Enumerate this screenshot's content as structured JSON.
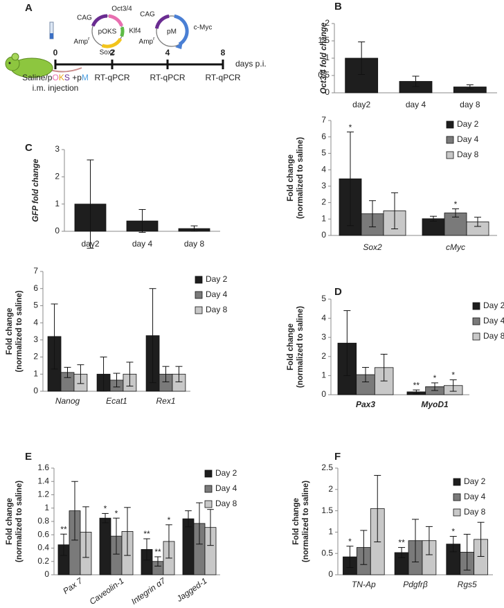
{
  "panel_a": {
    "panel": "A",
    "plasmid_oks": {
      "name": "pOKS",
      "promoter": "CAG",
      "genes": [
        "Oct3/4",
        "Klf4",
        "Sox2"
      ],
      "amp": "Amp",
      "amp_sup": "r"
    },
    "plasmid_m": {
      "name": "pM",
      "promoter": "CAG",
      "gene": "c-Myc",
      "amp": "Amp",
      "amp_sup": "r"
    },
    "timeline": [
      "0",
      "2",
      "4",
      "8"
    ],
    "timeline_unit": "days p.i.",
    "injection": [
      "Saline/p",
      "O",
      "K",
      "S",
      " +p",
      "M"
    ],
    "injection_note": "i.m. injection",
    "assays": [
      "RT-qPCR",
      "RT-qPCR",
      "RT-qPCR"
    ]
  },
  "chart_data": [
    {
      "type": "bar",
      "panel": "B",
      "ylabel": [
        "Oct3/4 fold change"
      ],
      "categories": [
        "day2",
        "day 4",
        "day 8"
      ],
      "values": [
        1.0,
        0.33,
        0.17
      ],
      "errors": [
        0.47,
        0.15,
        0.06
      ],
      "color": "#1e1e1e",
      "ylim": [
        0,
        2
      ],
      "yticks": [
        0,
        0.5,
        1,
        1.5,
        2
      ]
    },
    {
      "type": "bar",
      "panel": "C",
      "ylabel": [
        "GFP fold change"
      ],
      "categories": [
        "day2",
        "day 4",
        "day 8"
      ],
      "values": [
        1.0,
        0.38,
        0.1
      ],
      "errors": [
        1.62,
        0.42,
        0.1
      ],
      "color": "#1e1e1e",
      "ylim": [
        0,
        3
      ],
      "yticks": [
        0,
        1,
        2,
        3
      ]
    },
    {
      "type": "bar",
      "ylabel": [
        "Fold change",
        "(normalized to saline)"
      ],
      "categories": [
        "Sox2",
        "cMyc"
      ],
      "series": [
        {
          "name": "Day 2",
          "color": "#1e1e1e",
          "values": [
            3.45,
            1.02
          ],
          "errors": [
            2.85,
            0.15
          ],
          "annotations": [
            "*",
            null
          ]
        },
        {
          "name": "Day 4",
          "color": "#7a7a7a",
          "values": [
            1.32,
            1.37
          ],
          "errors": [
            0.8,
            0.25
          ],
          "annotations": [
            null,
            "*"
          ]
        },
        {
          "name": "Day 8",
          "color": "#c8c8c8",
          "values": [
            1.5,
            0.83
          ],
          "errors": [
            1.1,
            0.28
          ],
          "annotations": [
            null,
            null
          ]
        }
      ],
      "ylim": [
        0,
        7
      ],
      "yticks": [
        0,
        1,
        2,
        3,
        4,
        5,
        6,
        7
      ],
      "legend": "upper right"
    },
    {
      "type": "bar",
      "ylabel": [
        "Fold change",
        "(normalized to saline)"
      ],
      "categories": [
        "Nanog",
        "Ecat1",
        "Rex1"
      ],
      "series": [
        {
          "name": "Day 2",
          "color": "#1e1e1e",
          "values": [
            3.2,
            1.0,
            3.25
          ],
          "errors": [
            1.9,
            1.0,
            2.75
          ]
        },
        {
          "name": "Day 4",
          "color": "#7a7a7a",
          "values": [
            1.1,
            0.65,
            1.0
          ],
          "errors": [
            0.3,
            0.4,
            0.45
          ]
        },
        {
          "name": "Day 8",
          "color": "#c8c8c8",
          "values": [
            1.0,
            1.0,
            1.0
          ],
          "errors": [
            0.55,
            0.7,
            0.45
          ]
        }
      ],
      "ylim": [
        0,
        7
      ],
      "yticks": [
        0,
        1,
        2,
        3,
        4,
        5,
        6,
        7
      ],
      "legend": "right"
    },
    {
      "type": "bar",
      "panel": "D",
      "ylabel": [
        "Fold change",
        "(normalized to saline)"
      ],
      "categories": [
        "Pax3",
        "MyoD1"
      ],
      "series": [
        {
          "name": "Day 2",
          "color": "#1e1e1e",
          "values": [
            2.7,
            0.15
          ],
          "errors": [
            1.7,
            0.1
          ],
          "annotations": [
            null,
            "**"
          ]
        },
        {
          "name": "Day 4",
          "color": "#7a7a7a",
          "values": [
            1.05,
            0.42
          ],
          "errors": [
            0.38,
            0.2
          ],
          "annotations": [
            null,
            "*"
          ]
        },
        {
          "name": "Day 8",
          "color": "#c8c8c8",
          "values": [
            1.42,
            0.48
          ],
          "errors": [
            0.7,
            0.3
          ],
          "annotations": [
            null,
            "*"
          ]
        }
      ],
      "ylim": [
        0,
        5
      ],
      "yticks": [
        0,
        1,
        2,
        3,
        4,
        5
      ],
      "legend": "right"
    },
    {
      "type": "bar",
      "panel": "E",
      "ylabel": [
        "Fold change",
        "(normalized to saline)"
      ],
      "categories": [
        "Pax 7",
        "Caveolin-1",
        "Integrin α7",
        "Jagged-1"
      ],
      "series": [
        {
          "name": "Day 2",
          "color": "#1e1e1e",
          "values": [
            0.45,
            0.85,
            0.38,
            0.84
          ],
          "errors": [
            0.16,
            0.07,
            0.16,
            0.12
          ],
          "annotations": [
            "**",
            "*",
            "**",
            null
          ]
        },
        {
          "name": "Day 4",
          "color": "#7a7a7a",
          "values": [
            0.96,
            0.58,
            0.2,
            0.77
          ],
          "errors": [
            0.44,
            0.27,
            0.07,
            0.31
          ],
          "annotations": [
            null,
            "*",
            "**",
            null
          ]
        },
        {
          "name": "Day 8",
          "color": "#c8c8c8",
          "values": [
            0.64,
            0.65,
            0.5,
            0.71
          ],
          "errors": [
            0.38,
            0.36,
            0.25,
            0.27
          ],
          "annotations": [
            null,
            null,
            "*",
            null
          ]
        }
      ],
      "ylim": [
        0,
        1.6
      ],
      "yticks": [
        0,
        0.2,
        0.4,
        0.6,
        0.8,
        1,
        1.2,
        1.4,
        1.6
      ],
      "legend": "upper right"
    },
    {
      "type": "bar",
      "panel": "F",
      "ylabel": [
        "Fold change",
        "(normalized to saline)"
      ],
      "categories": [
        "TN-Ap",
        "Pdgfrβ",
        "Rgs5"
      ],
      "series": [
        {
          "name": "Day 2",
          "color": "#1e1e1e",
          "values": [
            0.42,
            0.52,
            0.72
          ],
          "errors": [
            0.25,
            0.12,
            0.18
          ],
          "annotations": [
            "*",
            "**",
            "*"
          ]
        },
        {
          "name": "Day 4",
          "color": "#7a7a7a",
          "values": [
            0.64,
            0.8,
            0.53
          ],
          "errors": [
            0.4,
            0.5,
            0.42
          ],
          "annotations": [
            null,
            null,
            null
          ]
        },
        {
          "name": "Day 8",
          "color": "#c8c8c8",
          "values": [
            1.55,
            0.8,
            0.83
          ],
          "errors": [
            0.78,
            0.33,
            0.4
          ],
          "annotations": [
            null,
            null,
            null
          ]
        }
      ],
      "ylim": [
        0,
        2.5
      ],
      "yticks": [
        0,
        0.5,
        1,
        1.5,
        2,
        2.5
      ],
      "legend": "upper right"
    }
  ]
}
